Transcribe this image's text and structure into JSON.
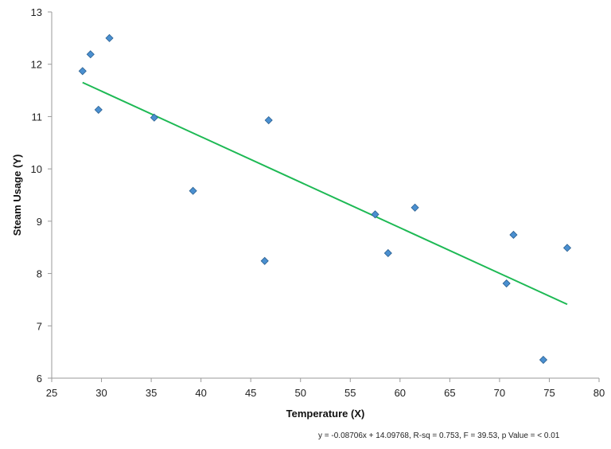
{
  "chart_data": {
    "type": "scatter",
    "title": "",
    "xlabel": "Temperature (X)",
    "ylabel": "Steam Usage (Y)",
    "xlim": [
      25,
      80
    ],
    "ylim": [
      6,
      13
    ],
    "x_ticks": [
      "25",
      "30",
      "35",
      "40",
      "45",
      "50",
      "55",
      "60",
      "65",
      "70",
      "75",
      "80"
    ],
    "y_ticks": [
      "6",
      "7",
      "8",
      "9",
      "10",
      "11",
      "12",
      "13"
    ],
    "grid": false,
    "legend": "none",
    "marker_color": "#4a8fd0",
    "trend_color": "#1db954",
    "points": [
      {
        "x": 28.1,
        "y": 11.87
      },
      {
        "x": 28.9,
        "y": 12.19
      },
      {
        "x": 30.8,
        "y": 12.5
      },
      {
        "x": 29.7,
        "y": 11.13
      },
      {
        "x": 35.3,
        "y": 10.98
      },
      {
        "x": 39.2,
        "y": 9.58
      },
      {
        "x": 46.8,
        "y": 10.93
      },
      {
        "x": 46.4,
        "y": 8.24
      },
      {
        "x": 57.5,
        "y": 9.13
      },
      {
        "x": 58.8,
        "y": 8.39
      },
      {
        "x": 61.5,
        "y": 9.26
      },
      {
        "x": 70.7,
        "y": 7.81
      },
      {
        "x": 71.4,
        "y": 8.74
      },
      {
        "x": 76.8,
        "y": 8.49
      },
      {
        "x": 74.4,
        "y": 6.35
      }
    ],
    "trendline": {
      "slope": -0.08706,
      "intercept": 14.09768,
      "x_range": [
        28.1,
        76.8
      ]
    },
    "annotation": "y = -0.08706x + 14.09768, R-sq = 0.753, F = 39.53, p Value =  < 0.01"
  }
}
